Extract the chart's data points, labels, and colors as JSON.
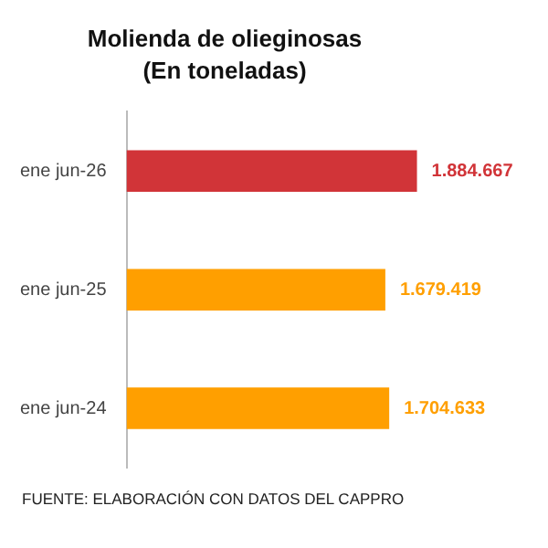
{
  "chart_data": {
    "type": "bar",
    "orientation": "horizontal",
    "title": "Molienda de olieginosas",
    "subtitle": "(En toneladas)",
    "categories": [
      "ene jun-26",
      "ene jun-25",
      "ene jun-24"
    ],
    "values": [
      1884667,
      1679419,
      1704633
    ],
    "colors": [
      "#d13438",
      "#ff9f00",
      "#ff9f00"
    ],
    "value_labels": [
      "1.884.667",
      "1.679.419",
      "1.704.633"
    ],
    "tick_labels": "y",
    "grid": false,
    "legend": false,
    "annotations": [
      "FUENTE: ELABORACIÓN CON DATOS DEL CAPPRO"
    ]
  }
}
